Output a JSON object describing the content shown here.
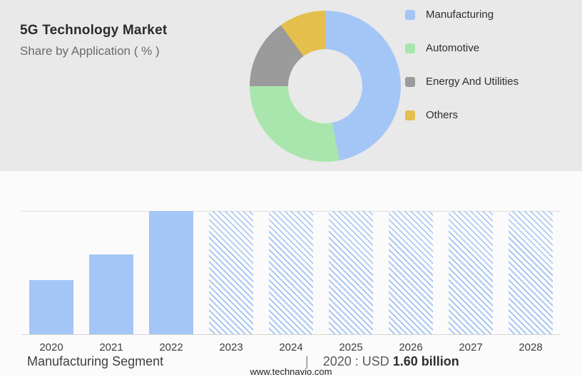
{
  "header": {
    "title": "5G Technology Market",
    "subtitle": "Share by Application ( % )"
  },
  "legend": [
    {
      "label": "Manufacturing",
      "color": "#a4c6f6",
      "icon": "legend-swatch-blue"
    },
    {
      "label": "Automotive",
      "color": "#a9e6ad",
      "icon": "legend-swatch-green"
    },
    {
      "label": "Energy And Utilities",
      "color": "#9b9b9b",
      "icon": "legend-swatch-gray"
    },
    {
      "label": "Others",
      "color": "#e5bf4d",
      "icon": "legend-swatch-yellow"
    }
  ],
  "chart_data": [
    {
      "type": "pie",
      "subtype": "donut",
      "title": "5G Technology Market — Share by Application ( % )",
      "categories": [
        "Manufacturing",
        "Automotive",
        "Energy And Utilities",
        "Others"
      ],
      "values": [
        47,
        28,
        15,
        10
      ],
      "colors": [
        "#a4c6f6",
        "#a9e6ad",
        "#9b9b9b",
        "#e5bf4d"
      ],
      "legend_position": "right",
      "start_angle_deg": 0,
      "hole_ratio": 0.49
    },
    {
      "type": "bar",
      "title": "Manufacturing Segment",
      "categories": [
        "2020",
        "2021",
        "2022",
        "2023",
        "2024",
        "2025",
        "2026",
        "2027",
        "2028"
      ],
      "values_relative_pct": [
        44,
        65,
        100,
        100,
        100,
        100,
        100,
        100,
        100
      ],
      "solid_years": [
        "2020",
        "2021",
        "2022"
      ],
      "hatched_years": [
        "2023",
        "2024",
        "2025",
        "2026",
        "2027",
        "2028"
      ],
      "bar_color": "#a4c6f6",
      "known_value": {
        "year": "2020",
        "label": "USD 1.60 billion"
      },
      "grid": "top-and-baseline-only",
      "xlabel": "",
      "ylabel": ""
    }
  ],
  "footer": {
    "segment_label": "Manufacturing Segment",
    "separator": "|",
    "value_prefix": "2020 : USD ",
    "value_bold": "1.60 billion",
    "website": "www.technavio.com"
  }
}
